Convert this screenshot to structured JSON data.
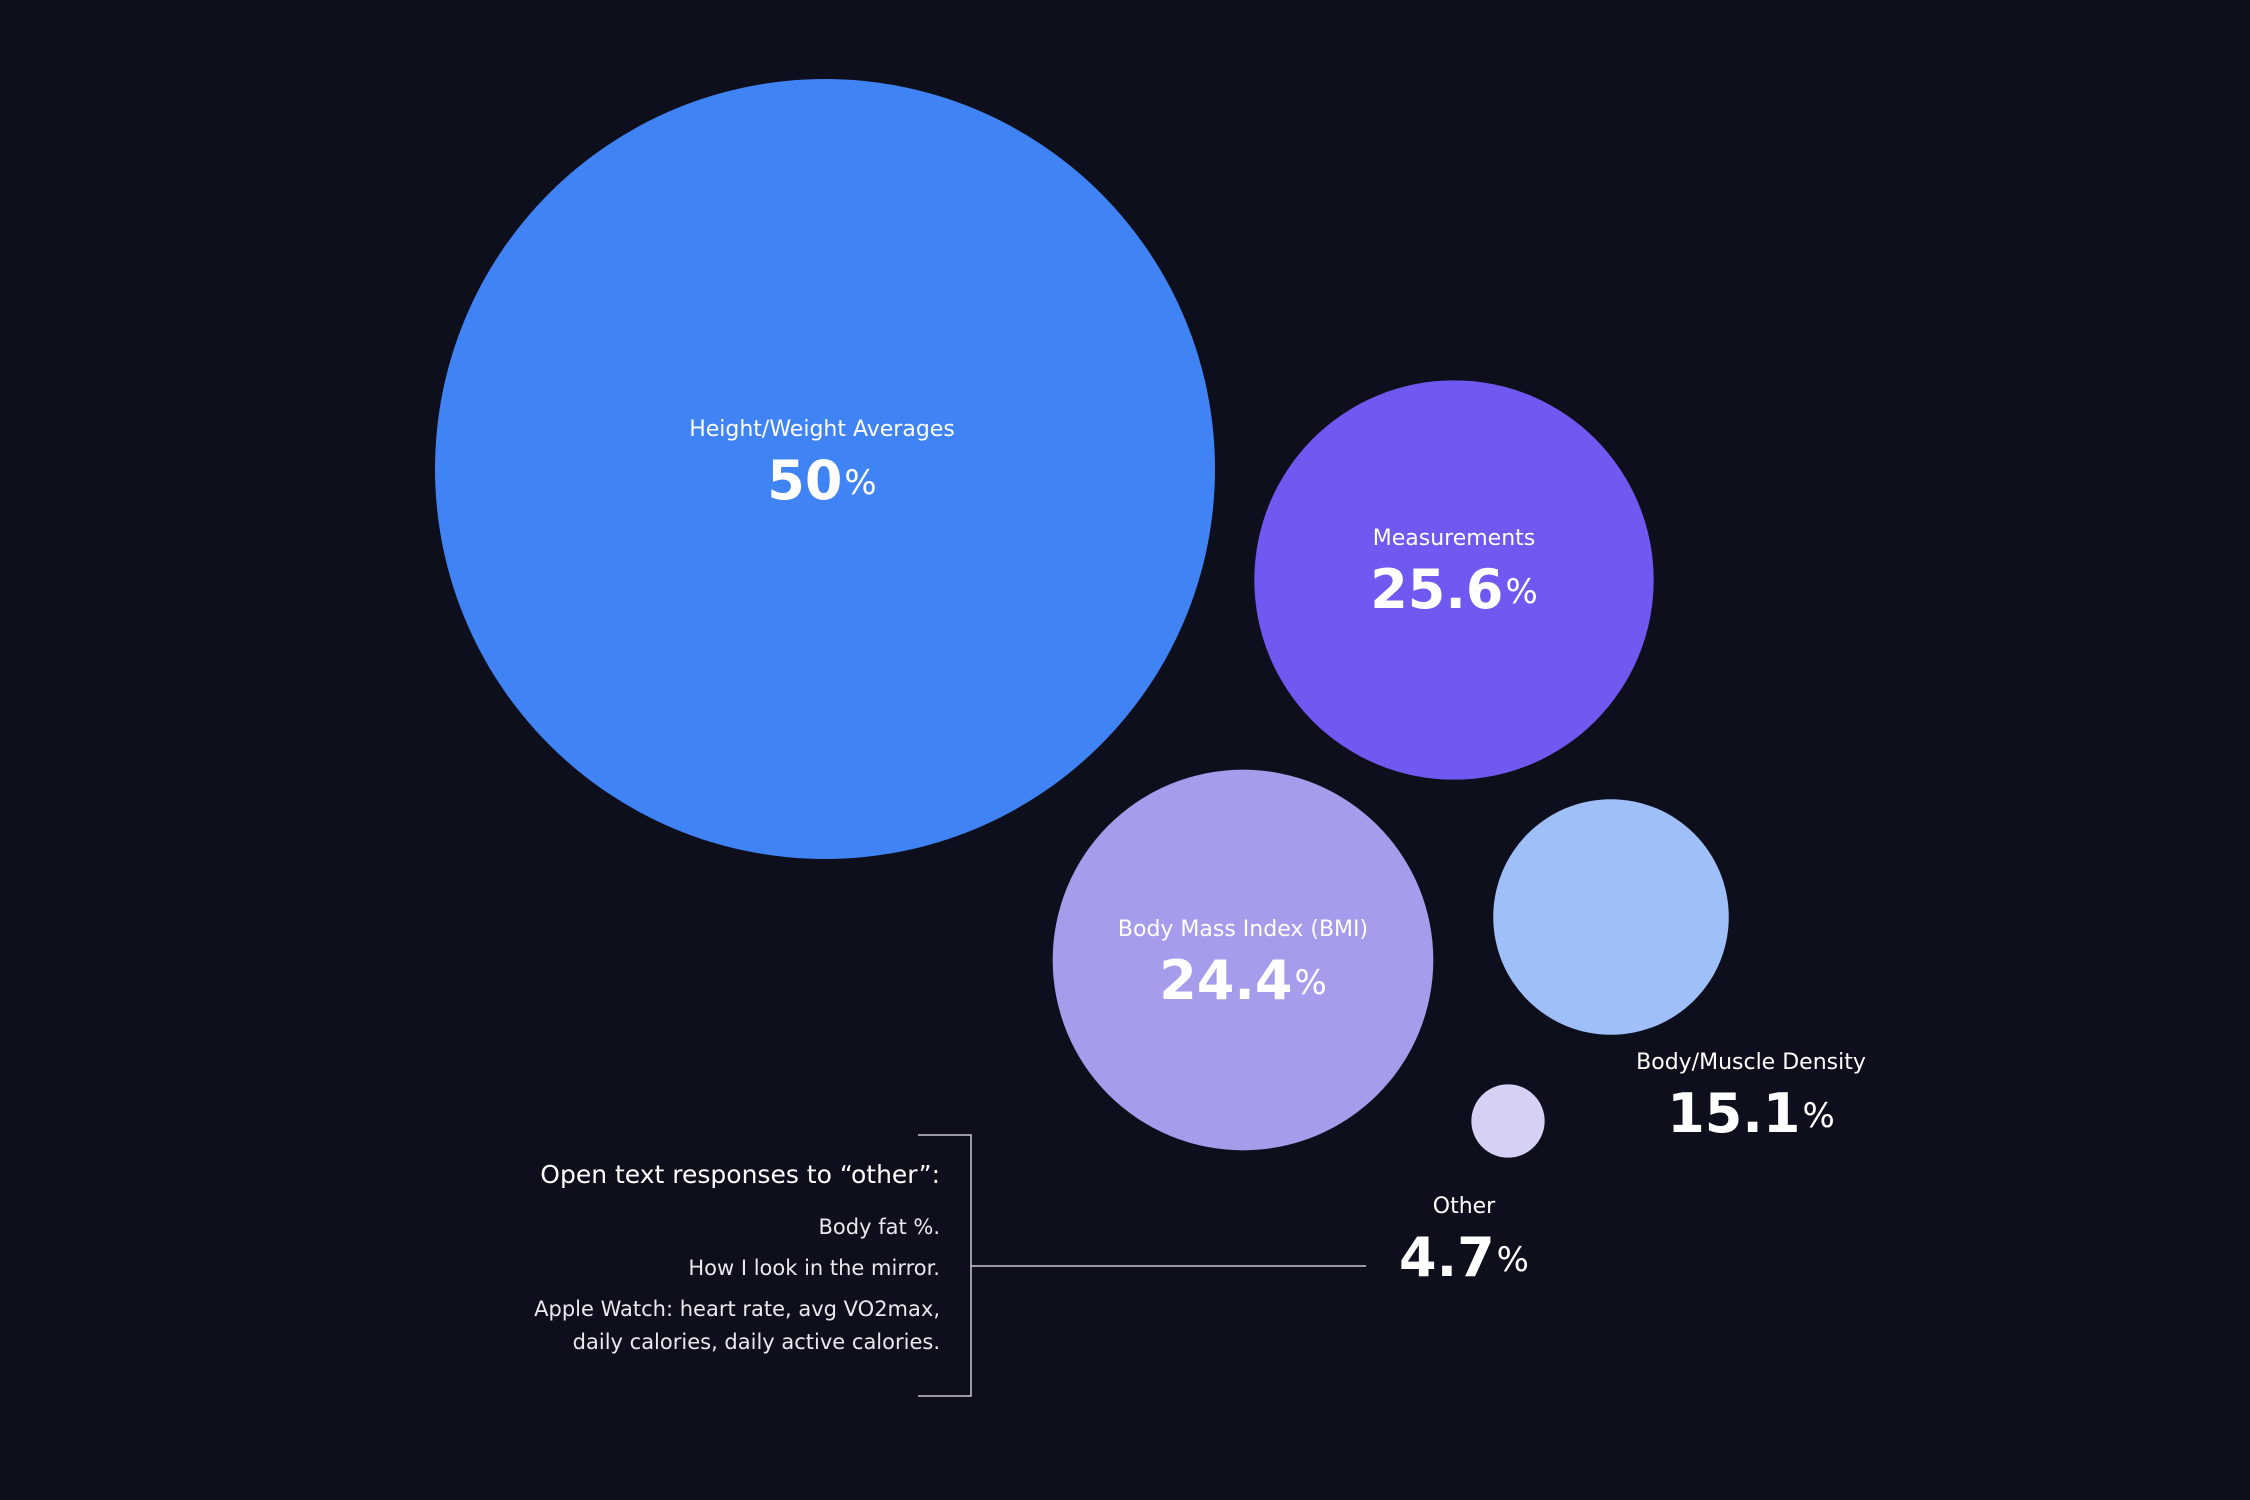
{
  "chart_data": {
    "type": "bubble",
    "categories": [
      "Height/Weight Averages",
      "Measurements",
      "Body Mass Index (BMI)",
      "Body/Muscle Density",
      "Other"
    ],
    "values": [
      50,
      25.6,
      24.4,
      15.1,
      4.7
    ],
    "unit": "%",
    "colors": [
      "#4083f4",
      "#7059f0",
      "#a59cec",
      "#9fbff8",
      "#d6d0f4"
    ],
    "annotation": {
      "title": "Open text responses to “other”:",
      "items": [
        "Body fat %.",
        "How I look in the mirror.",
        "Apple Watch: heart rate, avg VO2max, daily calories, daily active calories."
      ]
    }
  }
}
